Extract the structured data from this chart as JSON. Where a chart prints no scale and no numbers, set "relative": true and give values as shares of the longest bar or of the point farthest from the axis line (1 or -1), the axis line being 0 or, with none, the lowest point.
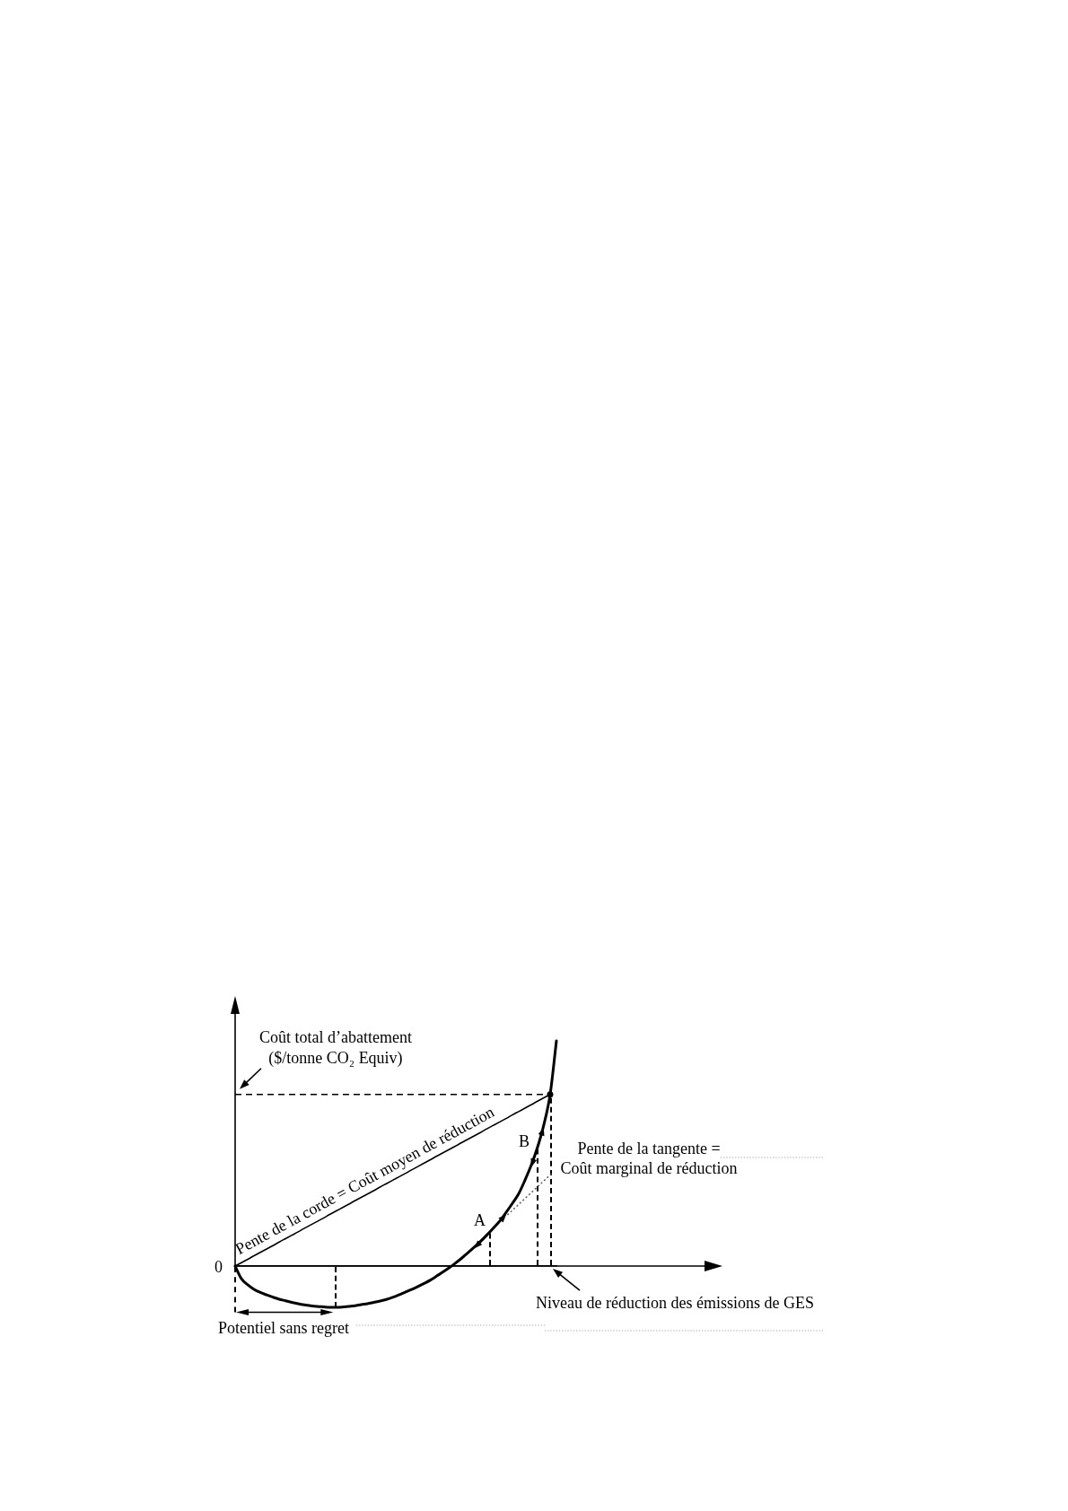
{
  "chart_data": {
    "type": "line",
    "relative": true,
    "ylabel": "Coût total d’abattement ($/tonne CO₂ Equiv)",
    "xlabel": "Niveau de réduction des émissions de GES",
    "categories": [
      null,
      null,
      null,
      null,
      null,
      null,
      null,
      null,
      null,
      null,
      null,
      null,
      null,
      null,
      null,
      null,
      null,
      null,
      null,
      null,
      null,
      null,
      null,
      null,
      null,
      null,
      null,
      null,
      null,
      null,
      null,
      null,
      null,
      null,
      null,
      null,
      null,
      null,
      null,
      null,
      null,
      null,
      null,
      null,
      null,
      null,
      null,
      null,
      null,
      null,
      null,
      null
    ],
    "series": [
      {
        "color": "#000000",
        "values": [
          0,
          -0.056,
          -0.083,
          -0.103,
          -0.117,
          -0.128,
          -0.138,
          -0.147,
          -0.154,
          -0.161,
          -0.167,
          -0.172,
          -0.176,
          -0.179,
          -0.181,
          -0.183,
          -0.183,
          -0.182,
          -0.179,
          -0.176,
          -0.171,
          -0.167,
          -0.161,
          -0.155,
          -0.148,
          -0.139,
          -0.128,
          -0.116,
          -0.104,
          -0.091,
          -0.077,
          -0.062,
          -0.044,
          -0.026,
          -0.007,
          0.014,
          0.036,
          0.06,
          0.085,
          0.111,
          0.139,
          0.169,
          0.2,
          0.238,
          0.278,
          0.321,
          0.381,
          0.448,
          0.528,
          0.627,
          0.762,
          1
        ]
      },
      {
        "color": "#000000",
        "values": [
          0,
          0.015,
          0.03,
          0.046,
          0.061,
          0.076,
          0.091,
          0.107,
          0.122,
          0.137,
          0.152,
          0.168,
          0.183,
          0.198,
          0.213,
          0.229,
          0.244,
          0.259,
          0.274,
          0.29,
          0.305,
          0.32,
          0.335,
          0.351,
          0.366,
          0.381,
          0.396,
          0.411,
          0.427,
          0.442,
          0.457,
          0.472,
          0.488,
          0.503,
          0.518,
          0.533,
          0.549,
          0.564,
          0.579,
          0.594,
          0.61,
          0.625,
          0.64,
          0.655,
          0.671,
          0.686,
          0.701,
          0.716,
          0.732,
          0.747,
          0.762,
          null
        ]
      }
    ],
    "ref_lines": [
      {
        "axis": "y",
        "value": 0.762,
        "color": "#000000",
        "line_style": "dashed"
      }
    ],
    "annotations": [
      "0",
      "Pente de la corde = Coût moyen de réduction",
      "A",
      "B",
      "Pente de la tangente =\nCoût marginal de réduction",
      "Potentiel sans regret"
    ],
    "grid": false,
    "legend": false,
    "marker": "none",
    "line_style": "solid"
  }
}
